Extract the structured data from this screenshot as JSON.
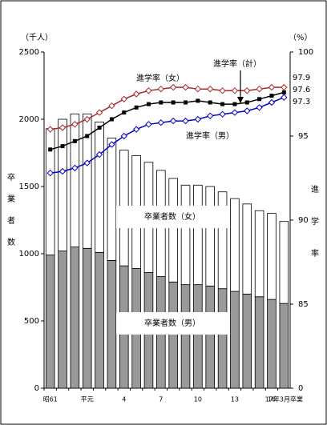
{
  "chart_data": {
    "type": "bar",
    "stacked": true,
    "y_unit": "（千人）",
    "y2_unit": "（%）",
    "ylabel": "卒業者数",
    "y2label": "進学率",
    "categories": [
      "昭61",
      null,
      null,
      "平元",
      null,
      null,
      "4",
      null,
      null,
      "7",
      null,
      null,
      "10",
      null,
      null,
      "13",
      null,
      null,
      "16",
      "17年3月卒業"
    ],
    "ylim": [
      0,
      2500
    ],
    "yticks": [
      0,
      500,
      1000,
      1500,
      2000,
      2500
    ],
    "y2lim": [
      80,
      100
    ],
    "y2ticks": [
      {
        "value": 80,
        "label": "0"
      },
      85,
      90,
      95,
      100
    ],
    "series": [
      {
        "name": "卒業者数（男）",
        "type": "bar",
        "color": "#999999",
        "values": [
          990,
          1020,
          1050,
          1040,
          1010,
          950,
          910,
          890,
          860,
          830,
          790,
          770,
          770,
          760,
          740,
          720,
          700,
          680,
          660,
          630
        ]
      },
      {
        "name": "卒業者数（女）",
        "type": "bar",
        "color": "#ffffff",
        "values": [
          940,
          980,
          990,
          1000,
          970,
          910,
          860,
          840,
          820,
          790,
          770,
          740,
          740,
          740,
          720,
          690,
          670,
          640,
          640,
          610
        ]
      },
      {
        "name": "進学率（女）",
        "type": "line",
        "axis": "y2",
        "color": "#a52a2a",
        "marker": "open-diamond",
        "values": [
          95.4,
          95.5,
          95.7,
          96.0,
          96.4,
          96.8,
          97.2,
          97.5,
          97.7,
          97.8,
          97.9,
          97.9,
          97.8,
          97.8,
          97.7,
          97.7,
          97.7,
          97.8,
          97.9,
          97.9
        ]
      },
      {
        "name": "進学率（計）",
        "type": "line",
        "axis": "y2",
        "color": "#000000",
        "marker": "square",
        "values": [
          94.2,
          94.4,
          94.7,
          95.0,
          95.5,
          96.0,
          96.4,
          96.7,
          96.9,
          97.0,
          97.0,
          97.0,
          97.1,
          97.0,
          96.9,
          96.9,
          97.0,
          97.2,
          97.4,
          97.6
        ]
      },
      {
        "name": "進学率（男）",
        "type": "line",
        "axis": "y2",
        "color": "#0000cc",
        "marker": "open-diamond",
        "values": [
          92.8,
          92.9,
          93.1,
          93.4,
          93.9,
          94.5,
          95.0,
          95.4,
          95.7,
          95.8,
          95.9,
          95.9,
          96.0,
          96.2,
          96.3,
          96.4,
          96.5,
          96.7,
          97.0,
          97.3
        ]
      }
    ]
  }
}
